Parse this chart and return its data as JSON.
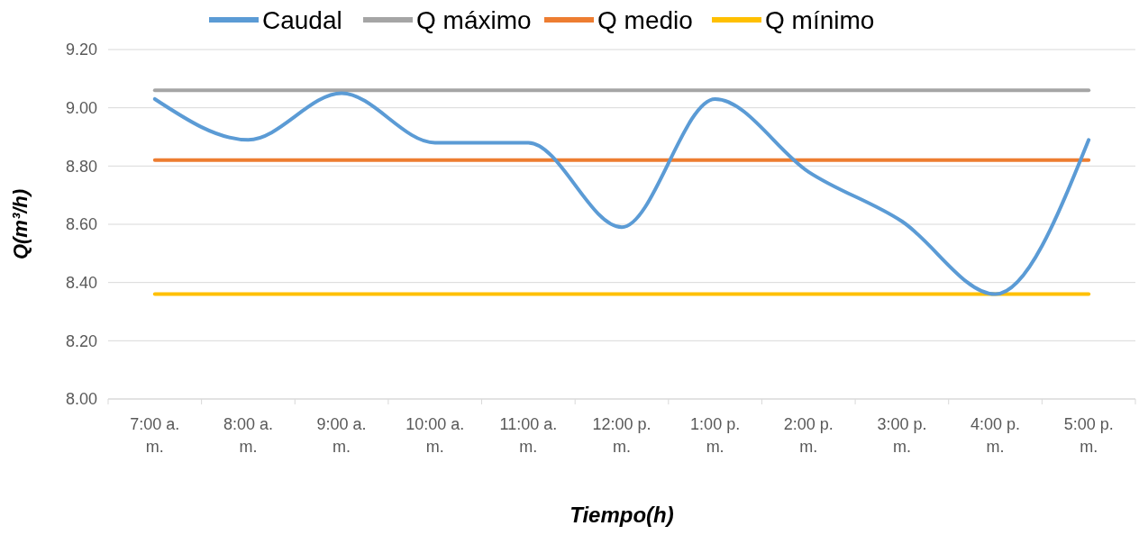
{
  "chart_data": {
    "type": "line",
    "xlabel": "Tiempo(h)",
    "ylabel": "Q(m³/h)",
    "categories": [
      "7:00 a. m.",
      "8:00 a. m.",
      "9:00 a. m.",
      "10:00 a. m.",
      "11:00 a. m.",
      "12:00 p. m.",
      "1:00 p. m.",
      "2:00 p. m.",
      "3:00 p. m.",
      "4:00 p. m.",
      "5:00 p. m."
    ],
    "series": [
      {
        "name": "Caudal",
        "color": "#5b9bd5",
        "values": [
          9.03,
          8.89,
          9.05,
          8.88,
          8.88,
          8.59,
          9.03,
          8.78,
          8.61,
          8.36,
          8.89
        ]
      },
      {
        "name": "Q máximo",
        "color": "#a5a5a5",
        "values": [
          9.06,
          9.06,
          9.06,
          9.06,
          9.06,
          9.06,
          9.06,
          9.06,
          9.06,
          9.06,
          9.06
        ]
      },
      {
        "name": "Q medio",
        "color": "#ed7d31",
        "values": [
          8.82,
          8.82,
          8.82,
          8.82,
          8.82,
          8.82,
          8.82,
          8.82,
          8.82,
          8.82,
          8.82
        ]
      },
      {
        "name": "Q mínimo",
        "color": "#ffc000",
        "values": [
          8.36,
          8.36,
          8.36,
          8.36,
          8.36,
          8.36,
          8.36,
          8.36,
          8.36,
          8.36,
          8.36
        ]
      }
    ],
    "ylim": [
      8,
      9.2
    ],
    "yticks": [
      {
        "value": 8,
        "label": "8.00"
      },
      {
        "value": 8.2,
        "label": "8.20"
      },
      {
        "value": 8.4,
        "label": "8.40"
      },
      {
        "value": 8.6,
        "label": "8.60"
      },
      {
        "value": 8.8,
        "label": "8.80"
      },
      {
        "value": 9,
        "label": "9.00"
      },
      {
        "value": 9.2,
        "label": "9.20"
      }
    ],
    "grid": "y",
    "legend": "top",
    "marker": "none",
    "line_style": "solid"
  }
}
